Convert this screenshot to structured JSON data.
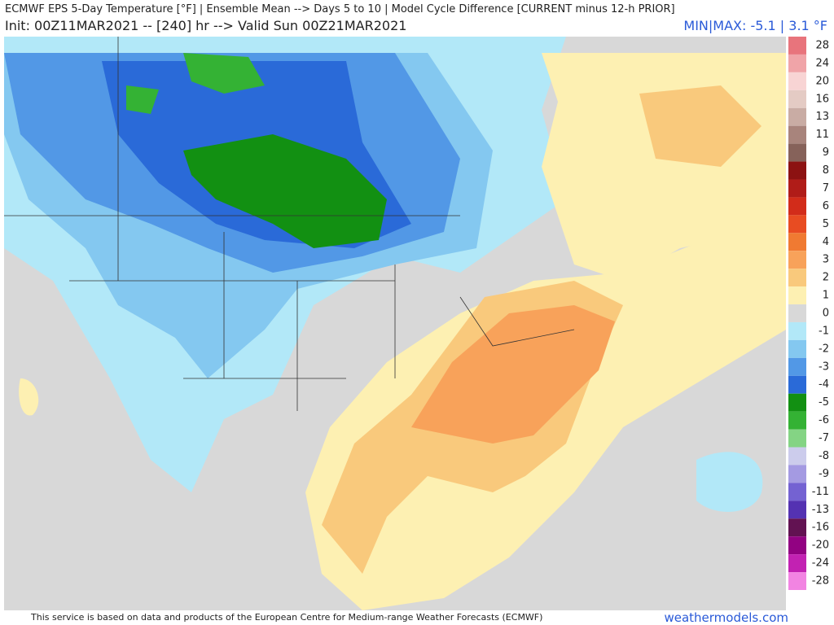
{
  "header": {
    "title": "ECMWF EPS 5-Day Temperature [°F] | Ensemble Mean --> Days 5 to 10 | Model Cycle Difference [CURRENT minus 12-h PRIOR]",
    "subtitle": "Init: 00Z11MAR2021 -- [240] hr --> Valid Sun 00Z21MAR2021",
    "minmax": "MIN|MAX: -5.1 | 3.1 °F"
  },
  "legend": {
    "labels": [
      "28",
      "24",
      "20",
      "16",
      "13",
      "11",
      "9",
      "8",
      "7",
      "6",
      "5",
      "4",
      "3",
      "2",
      "1",
      "0",
      "-1",
      "-2",
      "-3",
      "-4",
      "-5",
      "-6",
      "-7",
      "-8",
      "-9",
      "-11",
      "-13",
      "-16",
      "-20",
      "-24",
      "-28"
    ],
    "colors": [
      "#e8747c",
      "#f0a4a8",
      "#f8d4d4",
      "#e4cbc4",
      "#c9aca4",
      "#a8847c",
      "#86625a",
      "#8c1212",
      "#b01c18",
      "#d22c1a",
      "#e84c22",
      "#f07a32",
      "#f8a25a",
      "#f9c97c",
      "#fdf0b2",
      "#d8d8d8",
      "#b2e8f8",
      "#84c8f0",
      "#5298e6",
      "#2a6ad8",
      "#129012",
      "#34b234",
      "#84d484",
      "#ccccec",
      "#a49ae2",
      "#7462d2",
      "#5432b2",
      "#621252",
      "#920282",
      "#c222b2",
      "#f284e2"
    ]
  },
  "footer": {
    "text": "This service is based on data and products of the European Centre for Medium-range Weather Forecasts (ECMWF)",
    "site": "weathermodels.com"
  }
}
